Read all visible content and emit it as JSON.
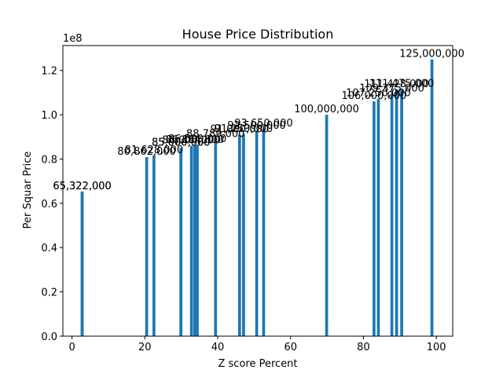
{
  "chart_data": {
    "type": "bar",
    "title": "House Price Distribution",
    "xlabel": "Z score Percent",
    "ylabel": "Per Squar Price",
    "y_offset_label": "1e8",
    "xlim": [
      -2.5,
      104.5
    ],
    "ylim": [
      0,
      131250000
    ],
    "x_ticks": [
      0,
      20,
      40,
      60,
      80,
      100
    ],
    "x_tick_labels": [
      "0",
      "20",
      "40",
      "60",
      "80",
      "100"
    ],
    "y_ticks": [
      0,
      20000000,
      40000000,
      60000000,
      80000000,
      100000000,
      120000000
    ],
    "y_tick_labels": [
      "0.0",
      "0.2",
      "0.4",
      "0.6",
      "0.8",
      "1.0",
      "1.2"
    ],
    "bar_color": "#1f77b4",
    "grid": false,
    "bars": [
      {
        "x": 2.8,
        "value": 65322000,
        "label": "65,322,000"
      },
      {
        "x": 2.8,
        "value": 65322000,
        "label": "65,322,000"
      },
      {
        "x": 20.5,
        "value": 80862000,
        "label": "80,862,000"
      },
      {
        "x": 22.5,
        "value": 81628000,
        "label": "81,628,000"
      },
      {
        "x": 29.9,
        "value": 85000000,
        "label": "85,000,000"
      },
      {
        "x": 29.9,
        "value": 85000000,
        "label": "85,000,000"
      },
      {
        "x": 32.8,
        "value": 86000000,
        "label": "86,000,000"
      },
      {
        "x": 33.7,
        "value": 86154000,
        "label": "86,154,000"
      },
      {
        "x": 34.4,
        "value": 86500000,
        "label": "86,500,000"
      },
      {
        "x": 39.4,
        "value": 88789000,
        "label": "88,789,000"
      },
      {
        "x": 46.0,
        "value": 91000000,
        "label": "91,000,000"
      },
      {
        "x": 47.1,
        "value": 91250000,
        "label": "91,250,000"
      },
      {
        "x": 50.7,
        "value": 92500000,
        "label": "92,500,000"
      },
      {
        "x": 52.6,
        "value": 93650000,
        "label": "93,650,000"
      },
      {
        "x": 69.9,
        "value": 100000000,
        "label": "100,000,000"
      },
      {
        "x": 82.9,
        "value": 106000000,
        "label": "106,000,000"
      },
      {
        "x": 84.1,
        "value": 107250000,
        "label": "107,250,000"
      },
      {
        "x": 87.8,
        "value": 109375000,
        "label": "109,375,000"
      },
      {
        "x": 89.1,
        "value": 111428000,
        "label": "111,428,000"
      },
      {
        "x": 90.5,
        "value": 111475000,
        "label": "111,475,000"
      },
      {
        "x": 98.8,
        "value": 125000000,
        "label": "125,000,000"
      }
    ]
  }
}
